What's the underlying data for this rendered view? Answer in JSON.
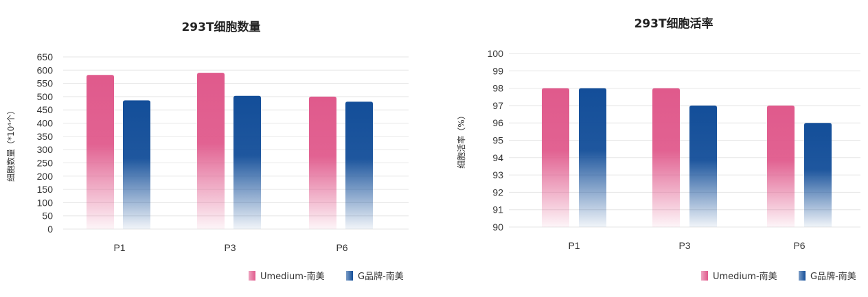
{
  "colors": {
    "pink": "#e05a8c",
    "blue": "#134e99",
    "grid": "#e6e6e6"
  },
  "chart_data": [
    {
      "type": "bar",
      "title": "293T细胞数量",
      "ylabel": "细胞数量（*10⁴个）",
      "xlabel": "",
      "categories": [
        "P1",
        "P3",
        "P6"
      ],
      "ylim": [
        0,
        650
      ],
      "yticks": [
        0,
        50,
        100,
        150,
        200,
        250,
        300,
        350,
        400,
        450,
        500,
        550,
        600,
        650
      ],
      "grid": true,
      "legend_position": "bottom-right",
      "series": [
        {
          "name": "Umedium-南美",
          "values": [
            582,
            590,
            500
          ]
        },
        {
          "name": "G品牌-南美",
          "values": [
            486,
            503,
            481
          ]
        }
      ]
    },
    {
      "type": "bar",
      "title": "293T细胞活率",
      "ylabel": "细胞活率（%）",
      "xlabel": "",
      "categories": [
        "P1",
        "P3",
        "P6"
      ],
      "ylim": [
        90,
        100
      ],
      "yticks": [
        90,
        91,
        92,
        93,
        94,
        95,
        96,
        97,
        98,
        99,
        100
      ],
      "grid": true,
      "legend_position": "bottom-right",
      "series": [
        {
          "name": "Umedium-南美",
          "values": [
            98,
            98,
            97
          ]
        },
        {
          "name": "G品牌-南美",
          "values": [
            98,
            97,
            96
          ]
        }
      ]
    }
  ]
}
